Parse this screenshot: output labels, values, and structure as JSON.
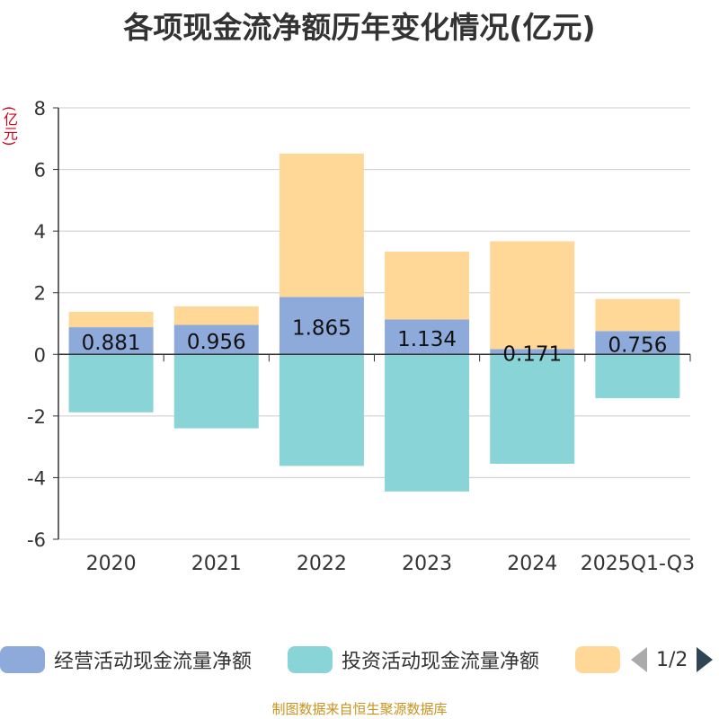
{
  "chart_data": {
    "type": "bar",
    "stacked": true,
    "title": "各项现金流净额历年变化情况(亿元)",
    "ylabel": "(亿元)",
    "xlabel": "",
    "categories": [
      "2020",
      "2021",
      "2022",
      "2023",
      "2024",
      "2025Q1-Q3"
    ],
    "ylim": [
      -6,
      8
    ],
    "yticks": [
      8,
      6,
      4,
      2,
      0,
      -2,
      -4,
      -6
    ],
    "grid": true,
    "series": [
      {
        "name": "经营活动现金流量净额",
        "color": "#8eaadb",
        "values": [
          0.881,
          0.956,
          1.865,
          1.134,
          0.171,
          0.756
        ],
        "labels": [
          "0.881",
          "0.956",
          "1.865",
          "1.134",
          "0.171",
          "0.756"
        ]
      },
      {
        "name": "投资活动现金流量净额",
        "color": "#88d4d6",
        "values": [
          -1.88,
          -2.4,
          -3.62,
          -4.45,
          -3.55,
          -1.42
        ]
      },
      {
        "name": "",
        "color": "#ffd898",
        "values": [
          0.5,
          0.6,
          4.65,
          2.2,
          3.5,
          1.04
        ]
      }
    ]
  },
  "legend": {
    "items": [
      {
        "label": "经营活动现金流量净额",
        "color": "#8eaadb"
      },
      {
        "label": "投资活动现金流量净额",
        "color": "#88d4d6"
      },
      {
        "label": "",
        "color": "#ffd898"
      }
    ],
    "page": "1/2"
  },
  "source": "制图数据来自恒生聚源数据库"
}
